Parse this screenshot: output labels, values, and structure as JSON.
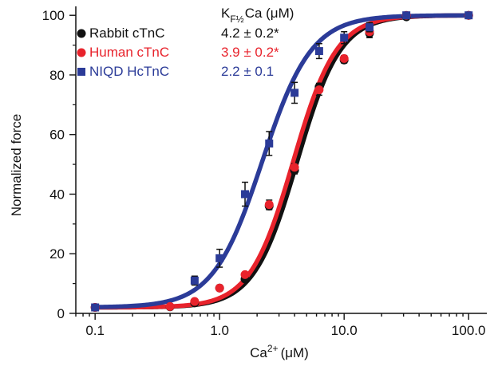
{
  "chart_data": {
    "type": "scatter",
    "xlabel": "Ca",
    "xlabel_sup": "2+",
    "xlabel_unit": "(μM)",
    "ylabel": "Normalized force",
    "x_scale": "log",
    "xlim": [
      0.07,
      140
    ],
    "ylim": [
      0,
      103
    ],
    "x_ticks": [
      0.1,
      1.0,
      10.0,
      100.0
    ],
    "x_tick_labels": [
      "0.1",
      "1.0",
      "10.0",
      "100.0"
    ],
    "y_ticks": [
      0,
      20,
      40,
      60,
      80,
      100
    ],
    "y_tick_labels": [
      "0",
      "20",
      "40",
      "60",
      "80",
      "100"
    ],
    "grid": false,
    "legend_position": "top-left",
    "k_header": {
      "main": "K",
      "sub": "F½",
      "suffix": "Ca (μM)"
    },
    "series": [
      {
        "name": "Rabbit cTnC",
        "k_value": "4.2 ± 0.2*",
        "marker": "circle",
        "color": "#111111",
        "fit": {
          "k": 4.2,
          "n": 2.5,
          "min": 2,
          "max": 100
        },
        "points": [
          {
            "x": 0.1,
            "y": 2,
            "err": 0
          },
          {
            "x": 0.4,
            "y": 2.2,
            "err": 0
          },
          {
            "x": 0.63,
            "y": 3.5,
            "err": 0
          },
          {
            "x": 1.0,
            "y": 8.5,
            "err": 0
          },
          {
            "x": 1.6,
            "y": 11.5,
            "err": 0
          },
          {
            "x": 2.5,
            "y": 36,
            "err": 1.2
          },
          {
            "x": 4.0,
            "y": 48,
            "err": 1.2
          },
          {
            "x": 6.3,
            "y": 76,
            "err": 1.2
          },
          {
            "x": 10.0,
            "y": 85,
            "err": 1
          },
          {
            "x": 16.0,
            "y": 94,
            "err": 1.5
          },
          {
            "x": 31.6,
            "y": 99.5,
            "err": 0.5
          },
          {
            "x": 100.0,
            "y": 100,
            "err": 0
          }
        ]
      },
      {
        "name": "Human cTnC",
        "k_value": "3.9 ± 0.2*",
        "marker": "circle",
        "color": "#e8232c",
        "fit": {
          "k": 3.9,
          "n": 2.5,
          "min": 2,
          "max": 100
        },
        "points": [
          {
            "x": 0.1,
            "y": 2,
            "err": 0
          },
          {
            "x": 0.4,
            "y": 2.3,
            "err": 0
          },
          {
            "x": 0.63,
            "y": 4,
            "err": 0
          },
          {
            "x": 1.0,
            "y": 8.5,
            "err": 0
          },
          {
            "x": 1.6,
            "y": 13,
            "err": 0
          },
          {
            "x": 2.5,
            "y": 36.5,
            "err": 1.5
          },
          {
            "x": 4.0,
            "y": 49,
            "err": 1.2
          },
          {
            "x": 6.3,
            "y": 75,
            "err": 1.8
          },
          {
            "x": 10.0,
            "y": 85.5,
            "err": 1
          },
          {
            "x": 16.0,
            "y": 94.5,
            "err": 1.5
          },
          {
            "x": 31.6,
            "y": 100,
            "err": 0.5
          },
          {
            "x": 100.0,
            "y": 100,
            "err": 0
          }
        ]
      },
      {
        "name": "NIQD HcTnC",
        "k_value": "2.2 ± 0.1",
        "marker": "square",
        "color": "#2b3b98",
        "fit": {
          "k": 2.2,
          "n": 2.2,
          "min": 2,
          "max": 100
        },
        "points": [
          {
            "x": 0.1,
            "y": 2,
            "err": 0
          },
          {
            "x": 0.63,
            "y": 11,
            "err": 1.5
          },
          {
            "x": 1.0,
            "y": 18.5,
            "err": 3
          },
          {
            "x": 1.6,
            "y": 40,
            "err": 4
          },
          {
            "x": 2.5,
            "y": 57,
            "err": 4
          },
          {
            "x": 4.0,
            "y": 74,
            "err": 3.5
          },
          {
            "x": 6.3,
            "y": 88,
            "err": 2.5
          },
          {
            "x": 10.0,
            "y": 92.5,
            "err": 2
          },
          {
            "x": 16.0,
            "y": 96,
            "err": 1.5
          },
          {
            "x": 31.6,
            "y": 100,
            "err": 0.5
          },
          {
            "x": 100.0,
            "y": 100,
            "err": 0
          }
        ]
      }
    ]
  }
}
